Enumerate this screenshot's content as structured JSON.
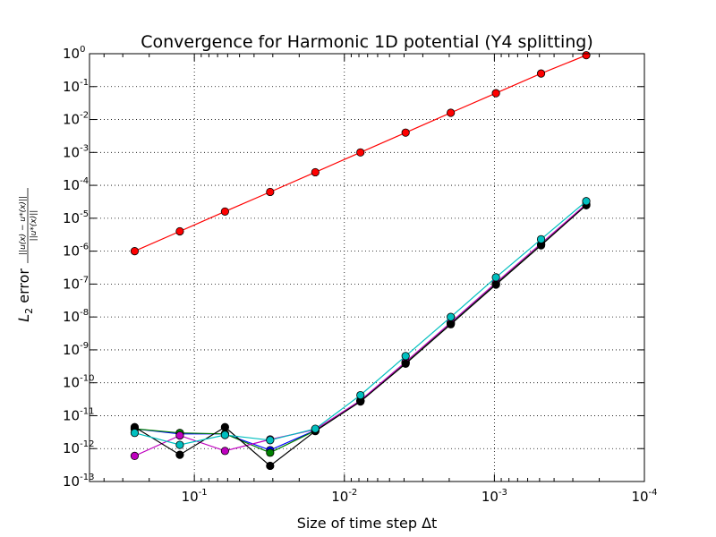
{
  "chart_data": {
    "type": "line",
    "title": "Convergence for Harmonic 1D potential (Y4 splitting)",
    "xlabel": "Size of time step Δt",
    "ylabel": {
      "prefix": "L",
      "subscript": "2",
      "word": " error ",
      "numerator": "||u(x) − u*(x)||",
      "denominator": "||u*(x)||"
    },
    "x_scale": "log",
    "y_scale": "log",
    "x_reversed": true,
    "xlim": [
      0.5,
      0.0001
    ],
    "ylim": [
      1e-13,
      1
    ],
    "grid": true,
    "x_ticks": [
      {
        "base": "10",
        "exp": "-1",
        "value": 0.1
      },
      {
        "base": "10",
        "exp": "-2",
        "value": 0.01
      },
      {
        "base": "10",
        "exp": "-3",
        "value": 0.001
      },
      {
        "base": "10",
        "exp": "-4",
        "value": 0.0001
      }
    ],
    "y_ticks": [
      {
        "base": "10",
        "exp": "0",
        "value": 1
      },
      {
        "base": "10",
        "exp": "-1",
        "value": 0.1
      },
      {
        "base": "10",
        "exp": "-2",
        "value": 0.01
      },
      {
        "base": "10",
        "exp": "-3",
        "value": 0.001
      },
      {
        "base": "10",
        "exp": "-4",
        "value": 0.0001
      },
      {
        "base": "10",
        "exp": "-5",
        "value": 1e-05
      },
      {
        "base": "10",
        "exp": "-6",
        "value": 1e-06
      },
      {
        "base": "10",
        "exp": "-7",
        "value": 1e-07
      },
      {
        "base": "10",
        "exp": "-8",
        "value": 1e-08
      },
      {
        "base": "10",
        "exp": "-9",
        "value": 1e-09
      },
      {
        "base": "10",
        "exp": "-10",
        "value": 1e-10
      },
      {
        "base": "10",
        "exp": "-11",
        "value": 1e-11
      },
      {
        "base": "10",
        "exp": "-12",
        "value": 1e-12
      },
      {
        "base": "10",
        "exp": "-13",
        "value": 1e-13
      }
    ],
    "x": [
      0.25,
      0.125,
      0.0625,
      0.03125,
      0.015625,
      0.0078125,
      0.00390625,
      0.001953125,
      0.0009765625,
      0.00048828125,
      0.000244140625
    ],
    "series": [
      {
        "color": "#ff0000",
        "values": [
          1e-06,
          4e-06,
          1.6e-05,
          6.3e-05,
          0.00025,
          0.001,
          0.004,
          0.016,
          0.063,
          0.25,
          0.9
        ]
      },
      {
        "color": "#0000ff",
        "values": [
          4e-12,
          2.8e-12,
          2.8e-12,
          9e-13,
          3.6e-12,
          2.9e-11,
          4.2e-10,
          6.6e-09,
          1e-07,
          1.6e-06,
          2.6e-05
        ]
      },
      {
        "color": "#008000",
        "values": [
          4e-12,
          3e-12,
          2.8e-12,
          7.5e-13,
          3.5e-12,
          2.8e-11,
          4e-10,
          6.2e-09,
          1e-07,
          1.6e-06,
          2.5e-05
        ]
      },
      {
        "color": "#bf00bf",
        "values": [
          6e-13,
          2.5e-12,
          8.5e-13,
          1.9e-12,
          3.8e-12,
          2.9e-11,
          4.3e-10,
          6.8e-09,
          1.1e-07,
          1.7e-06,
          2.7e-05
        ]
      },
      {
        "color": "#000000",
        "values": [
          4.5e-12,
          6.5e-13,
          4.5e-12,
          3e-13,
          3.4e-12,
          2.7e-11,
          3.8e-10,
          6e-09,
          9.6e-08,
          1.5e-06,
          2.5e-05
        ]
      },
      {
        "color": "#00bfbf",
        "values": [
          3e-12,
          1.3e-12,
          2.6e-12,
          1.8e-12,
          4e-12,
          4.2e-11,
          6.5e-10,
          1e-08,
          1.6e-07,
          2.3e-06,
          3.3e-05
        ]
      }
    ]
  }
}
